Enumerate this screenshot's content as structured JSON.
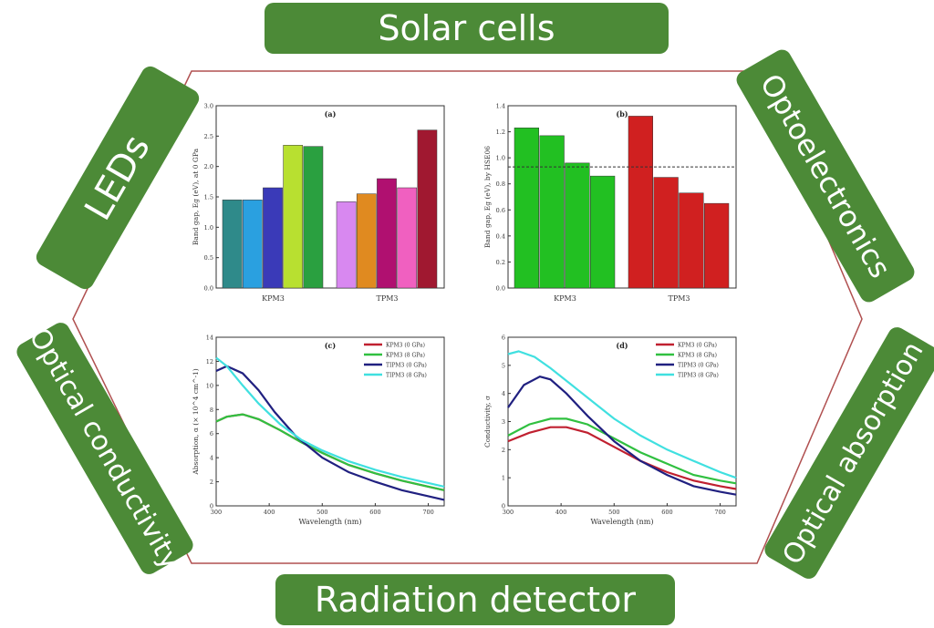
{
  "labels": {
    "top": "Solar cells",
    "bottom": "Radiation detector",
    "left_upper": "LEDs",
    "right_upper": "Optoelectronics",
    "left_lower": "Optical conductivity",
    "right_lower": "Optical absorption"
  },
  "colors": {
    "tab": "#4c8a37",
    "hexagon": "#b05050"
  },
  "chart_data": [
    {
      "type": "bar",
      "panel_label": "(a)",
      "ylabel": "Band gap, Eg (eV), at 0 GPa",
      "ylim": [
        0.0,
        3.0
      ],
      "yticks": [
        "0.0",
        "0.5",
        "1.0",
        "1.5",
        "2.0",
        "2.5",
        "3.0"
      ],
      "groups": [
        "KPM3",
        "TPM3"
      ],
      "series": [
        {
          "group": "KPM3",
          "values": [
            1.45,
            1.45,
            1.65,
            2.35,
            2.33
          ],
          "colors": [
            "#2f8a8a",
            "#2aa0e0",
            "#3a3ab8",
            "#b8e030",
            "#2aa040"
          ]
        },
        {
          "group": "TPM3",
          "values": [
            1.42,
            1.55,
            1.8,
            1.65,
            2.6
          ],
          "colors": [
            "#d888f0",
            "#e08a20",
            "#b01070",
            "#f060c0",
            "#a01830"
          ]
        }
      ]
    },
    {
      "type": "bar",
      "panel_label": "(b)",
      "ylabel": "Band gap, Eg (eV), by HSE06",
      "ylim": [
        0.0,
        1.4
      ],
      "yticks": [
        "0.0",
        "0.2",
        "0.4",
        "0.6",
        "0.8",
        "1.0",
        "1.2",
        "1.4"
      ],
      "reference_line": 0.93,
      "groups": [
        "KPM3",
        "TPM3"
      ],
      "series": [
        {
          "group": "KPM3",
          "values": [
            1.23,
            1.17,
            0.96,
            0.86
          ],
          "color": "#22c022"
        },
        {
          "group": "TPM3",
          "values": [
            1.32,
            0.85,
            0.73,
            0.65
          ],
          "color": "#d02020"
        }
      ]
    },
    {
      "type": "line",
      "panel_label": "(c)",
      "xlabel": "Wavelength (nm)",
      "ylabel": "Absorption, α (× 10^4 cm^-1)",
      "xlim": [
        300,
        730
      ],
      "ylim": [
        0,
        14
      ],
      "xticks": [
        "300",
        "400",
        "500",
        "600",
        "700"
      ],
      "yticks": [
        "0",
        "2",
        "4",
        "6",
        "8",
        "10",
        "12",
        "14"
      ],
      "series": [
        {
          "name": "KPM3 (0 GPa)",
          "color": "#c02030",
          "x": [
            300,
            320,
            350,
            380,
            420,
            460,
            500,
            550,
            600,
            650,
            700,
            730
          ],
          "y": [
            7.0,
            7.4,
            7.6,
            7.2,
            6.3,
            5.3,
            4.4,
            3.4,
            2.7,
            2.1,
            1.6,
            1.3
          ]
        },
        {
          "name": "KPM3 (8 GPa)",
          "color": "#30c040",
          "x": [
            300,
            320,
            350,
            380,
            420,
            460,
            500,
            550,
            600,
            650,
            700,
            730
          ],
          "y": [
            7.0,
            7.4,
            7.6,
            7.2,
            6.3,
            5.3,
            4.4,
            3.4,
            2.7,
            2.1,
            1.6,
            1.3
          ]
        },
        {
          "name": "TIPM3 (0 GPa)",
          "color": "#202080",
          "x": [
            300,
            320,
            350,
            380,
            410,
            450,
            500,
            550,
            600,
            650,
            700,
            730
          ],
          "y": [
            11.2,
            11.6,
            11.0,
            9.6,
            7.8,
            5.8,
            4.0,
            2.8,
            2.0,
            1.3,
            0.8,
            0.5
          ]
        },
        {
          "name": "TIPM3 (8 GPa)",
          "color": "#40e0e0",
          "x": [
            300,
            320,
            350,
            380,
            420,
            460,
            500,
            550,
            600,
            650,
            700,
            730
          ],
          "y": [
            12.3,
            11.6,
            10.0,
            8.5,
            6.8,
            5.5,
            4.6,
            3.7,
            3.0,
            2.4,
            1.9,
            1.6
          ]
        }
      ]
    },
    {
      "type": "line",
      "panel_label": "(d)",
      "xlabel": "Wavelength (nm)",
      "ylabel": "Conductivity, σ",
      "xlim": [
        300,
        730
      ],
      "ylim": [
        0,
        6
      ],
      "xticks": [
        "300",
        "400",
        "500",
        "600",
        "700"
      ],
      "yticks": [
        "0",
        "1",
        "2",
        "3",
        "4",
        "5",
        "6"
      ],
      "series": [
        {
          "name": "KPM3 (0 GPa)",
          "color": "#c02030",
          "x": [
            300,
            340,
            380,
            410,
            450,
            500,
            550,
            600,
            650,
            700,
            730
          ],
          "y": [
            2.3,
            2.6,
            2.8,
            2.8,
            2.6,
            2.1,
            1.6,
            1.2,
            0.9,
            0.7,
            0.6
          ]
        },
        {
          "name": "KPM3 (8 GPa)",
          "color": "#30c040",
          "x": [
            300,
            340,
            380,
            410,
            450,
            500,
            550,
            600,
            650,
            700,
            730
          ],
          "y": [
            2.5,
            2.9,
            3.1,
            3.1,
            2.9,
            2.4,
            1.9,
            1.5,
            1.1,
            0.9,
            0.8
          ]
        },
        {
          "name": "TIPM3 (0 GPa)",
          "color": "#202080",
          "x": [
            300,
            330,
            360,
            380,
            410,
            450,
            500,
            550,
            600,
            650,
            700,
            730
          ],
          "y": [
            3.5,
            4.3,
            4.6,
            4.5,
            4.0,
            3.2,
            2.3,
            1.6,
            1.1,
            0.7,
            0.5,
            0.4
          ]
        },
        {
          "name": "TIPM3 (8 GPa)",
          "color": "#40e0e0",
          "x": [
            300,
            320,
            350,
            380,
            420,
            460,
            500,
            550,
            600,
            650,
            700,
            730
          ],
          "y": [
            5.4,
            5.5,
            5.3,
            4.9,
            4.3,
            3.7,
            3.1,
            2.5,
            2.0,
            1.6,
            1.2,
            1.0
          ]
        }
      ]
    }
  ]
}
